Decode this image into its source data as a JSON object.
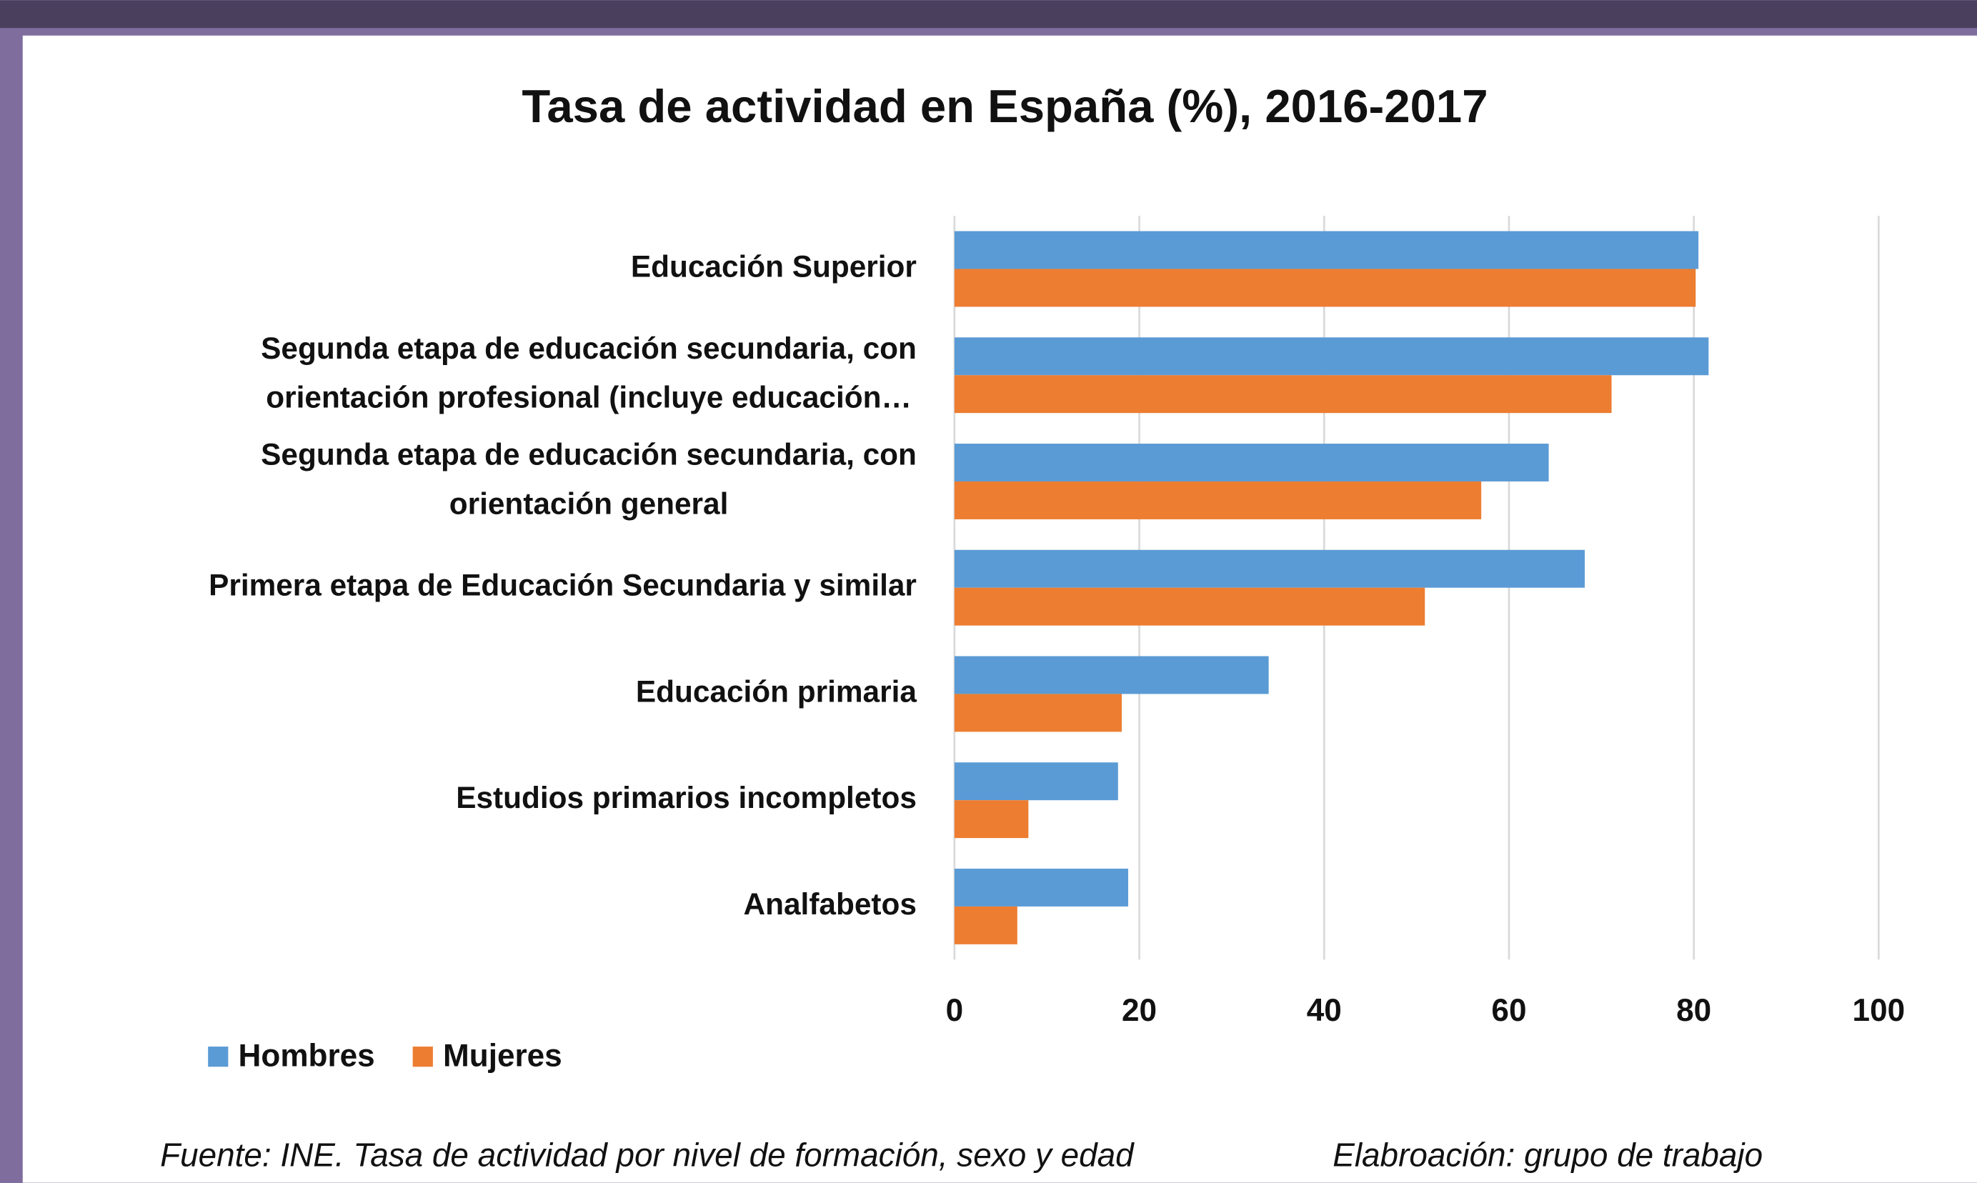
{
  "chart_data": {
    "type": "hbar",
    "title": "Tasa de actividad en España (%), 2016-2017",
    "categories": [
      [
        "Educación Superior"
      ],
      [
        "Segunda etapa de educación secundaria, con",
        "orientación profesional (incluye educación…"
      ],
      [
        "Segunda etapa de educación secundaria, con",
        "orientación general"
      ],
      [
        "Primera etapa de Educación Secundaria y similar"
      ],
      [
        "Educación primaria"
      ],
      [
        "Estudios primarios incompletos"
      ],
      [
        "Analfabetos"
      ]
    ],
    "series": [
      {
        "name": "Hombres",
        "color": "#5b9bd5",
        "values": [
          80.5,
          81.6,
          64.3,
          68.2,
          34.0,
          17.7,
          18.8
        ]
      },
      {
        "name": "Mujeres",
        "color": "#ed7d31",
        "values": [
          80.2,
          71.1,
          57.0,
          50.9,
          18.1,
          8.0,
          6.8
        ]
      }
    ],
    "xlim": [
      0,
      100
    ],
    "xticks": [
      0,
      20,
      40,
      60,
      80,
      100
    ],
    "grid": true,
    "legend": "bottom-left",
    "source": "Fuente: INE. Tasa de actividad por nivel de formación, sexo y edad",
    "credit": "Elabroación: grupo de trabajo"
  }
}
